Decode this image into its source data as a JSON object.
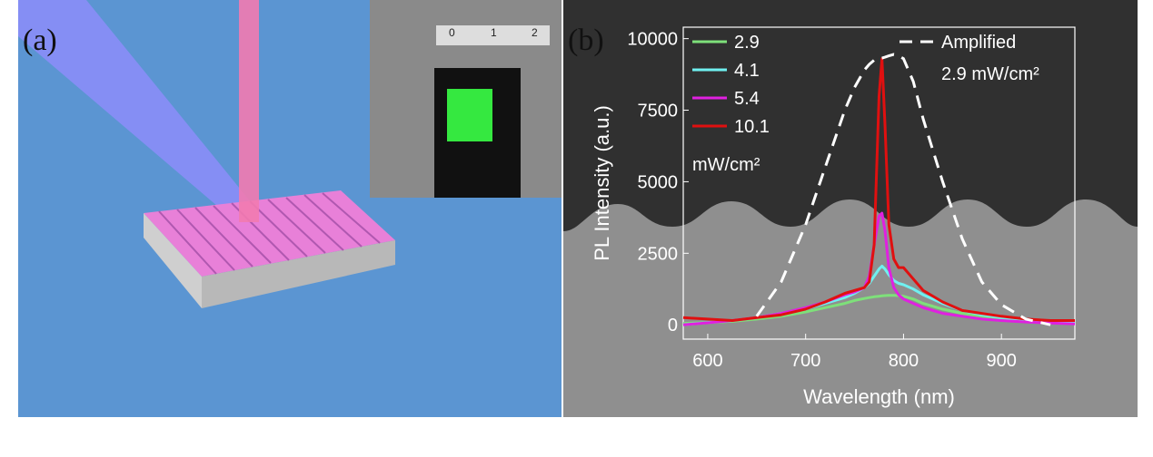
{
  "panels": {
    "a": "(a)",
    "b": "(b)"
  },
  "inset_ruler_labels": [
    "0",
    "1",
    "2"
  ],
  "chart_data": {
    "type": "line",
    "xlabel": "Wavelength (nm)",
    "ylabel": "PL Intensity (a.u.)",
    "legend_unit": "mW/cm²",
    "annotation": "2.9 mW/cm²",
    "xlim": [
      575,
      975
    ],
    "ylim": [
      -500,
      10400
    ],
    "xticks": [
      600,
      700,
      800,
      900
    ],
    "yticks": [
      0,
      2500,
      5000,
      7500,
      10000
    ],
    "x": [
      575,
      600,
      625,
      650,
      675,
      700,
      720,
      740,
      750,
      760,
      765,
      770,
      775,
      778,
      781,
      785,
      790,
      795,
      800,
      810,
      820,
      840,
      860,
      880,
      900,
      925,
      950,
      975
    ],
    "series": [
      {
        "name": "2.9",
        "color": "#7ee07a",
        "dash": false,
        "values": [
          50,
          80,
          120,
          200,
          300,
          450,
          600,
          750,
          850,
          920,
          950,
          980,
          1000,
          1010,
          1020,
          1030,
          1030,
          1020,
          1000,
          900,
          750,
          550,
          400,
          300,
          230,
          150,
          100,
          60
        ]
      },
      {
        "name": "4.1",
        "color": "#6ff0f0",
        "dash": false,
        "values": [
          0,
          80,
          150,
          250,
          400,
          550,
          750,
          950,
          1100,
          1300,
          1450,
          1700,
          1950,
          2050,
          1950,
          1750,
          1550,
          1450,
          1400,
          1250,
          1050,
          750,
          500,
          350,
          250,
          180,
          120,
          80
        ]
      },
      {
        "name": "5.4",
        "color": "#e020e0",
        "dash": false,
        "values": [
          0,
          70,
          150,
          250,
          400,
          600,
          800,
          1050,
          1150,
          1300,
          1700,
          2800,
          3800,
          3900,
          3300,
          2000,
          1300,
          1050,
          900,
          750,
          600,
          400,
          300,
          200,
          150,
          100,
          60,
          30
        ]
      },
      {
        "name": "10.1",
        "color": "#e01010",
        "dash": false,
        "values": [
          250,
          200,
          150,
          250,
          350,
          550,
          800,
          1100,
          1200,
          1300,
          1500,
          2800,
          8000,
          9300,
          7000,
          3500,
          2300,
          2000,
          2000,
          1600,
          1200,
          800,
          500,
          400,
          300,
          200,
          150,
          150
        ]
      },
      {
        "name": "Amplified",
        "color": "#ffffff",
        "dash": true,
        "values": [
          null,
          null,
          null,
          300,
          1500,
          3500,
          5500,
          7500,
          8300,
          8900,
          9100,
          9250,
          9300,
          9320,
          9350,
          9400,
          9450,
          9400,
          9300,
          8500,
          7200,
          5000,
          3000,
          1500,
          700,
          200,
          0,
          null
        ]
      }
    ]
  }
}
